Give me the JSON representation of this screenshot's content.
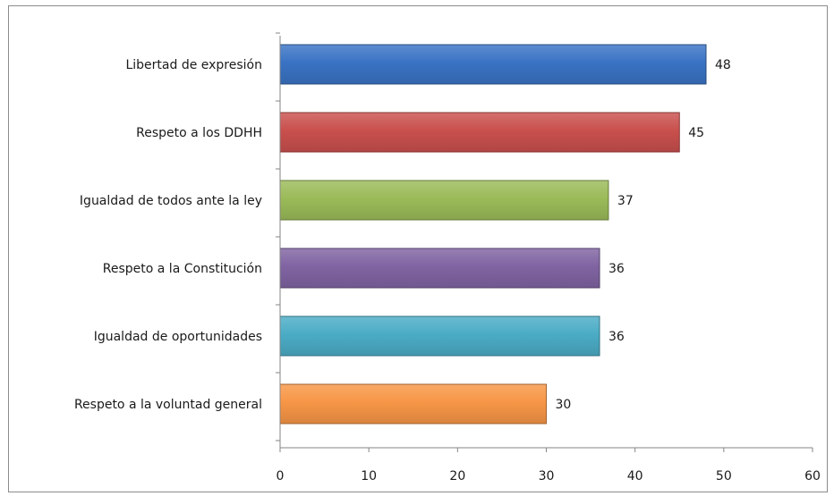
{
  "chart_data": {
    "type": "bar",
    "orientation": "horizontal",
    "categories": [
      "Libertad de expresión",
      "Respeto a los DDHH",
      "Igualdad de todos ante la ley",
      "Respeto a la Constitución",
      "Igualdad de oportunidades",
      "Respeto a la voluntad general"
    ],
    "values": [
      48,
      45,
      37,
      36,
      36,
      30
    ],
    "colors": [
      "#3a73c4",
      "#c9504d",
      "#9bbb59",
      "#8064a2",
      "#4bacc6",
      "#f79646"
    ],
    "xlim": [
      0,
      60
    ],
    "xticks": [
      0,
      10,
      20,
      30,
      40,
      50,
      60
    ],
    "title": "",
    "xlabel": "",
    "ylabel": "",
    "grid": false,
    "legend": "none",
    "data_labels": true
  }
}
